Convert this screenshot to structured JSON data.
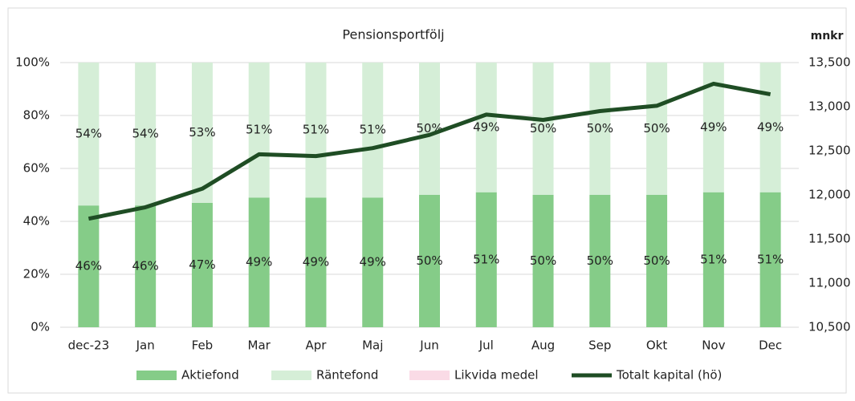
{
  "chart_data": {
    "type": "bar",
    "title": "Pensionsportfölj",
    "y2_label": "mnkr",
    "categories": [
      "dec-23",
      "Jan",
      "Feb",
      "Mar",
      "Apr",
      "Maj",
      "Jun",
      "Jul",
      "Aug",
      "Sep",
      "Okt",
      "Nov",
      "Dec"
    ],
    "series": [
      {
        "name": "Aktiefond",
        "color": "#85cc88",
        "values": [
          46,
          46,
          47,
          49,
          49,
          49,
          50,
          51,
          50,
          50,
          50,
          51,
          51
        ],
        "value_labels": [
          "46%",
          "46%",
          "47%",
          "49%",
          "49%",
          "49%",
          "50%",
          "51%",
          "50%",
          "50%",
          "50%",
          "51%",
          "51%"
        ]
      },
      {
        "name": "Räntefond",
        "color": "#d5eed7",
        "values": [
          54,
          54,
          53,
          51,
          51,
          51,
          50,
          49,
          50,
          50,
          50,
          49,
          49
        ],
        "value_labels": [
          "54%",
          "54%",
          "53%",
          "51%",
          "51%",
          "51%",
          "50%",
          "49%",
          "50%",
          "50%",
          "50%",
          "49%",
          "49%"
        ]
      },
      {
        "name": "Likvida medel",
        "color": "#fadbe6",
        "values": [
          0,
          0,
          0,
          0,
          0,
          0,
          0,
          0,
          0,
          0,
          0,
          0,
          0
        ]
      },
      {
        "name": "Totalt kapital (hö)",
        "type": "line",
        "axis": "y2",
        "color": "#1f4d24",
        "values": [
          11730,
          11860,
          12070,
          12460,
          12440,
          12530,
          12680,
          12910,
          12850,
          12950,
          13010,
          13260,
          13140
        ]
      }
    ],
    "ylim": [
      0,
      100
    ],
    "yticks": [
      {
        "value": 0,
        "label": "0%"
      },
      {
        "value": 20,
        "label": "20%"
      },
      {
        "value": 40,
        "label": "40%"
      },
      {
        "value": 60,
        "label": "60%"
      },
      {
        "value": 80,
        "label": "80%"
      },
      {
        "value": 100,
        "label": "100%"
      }
    ],
    "y2lim": [
      10500,
      13500
    ],
    "y2ticks": [
      {
        "value": 10500,
        "label": "10,500"
      },
      {
        "value": 11000,
        "label": "11,000"
      },
      {
        "value": 11500,
        "label": "11,500"
      },
      {
        "value": 12000,
        "label": "12,000"
      },
      {
        "value": 12500,
        "label": "12,500"
      },
      {
        "value": 13000,
        "label": "13,000"
      },
      {
        "value": 13500,
        "label": "13,500"
      }
    ],
    "grid": true,
    "legend": "bottom"
  }
}
